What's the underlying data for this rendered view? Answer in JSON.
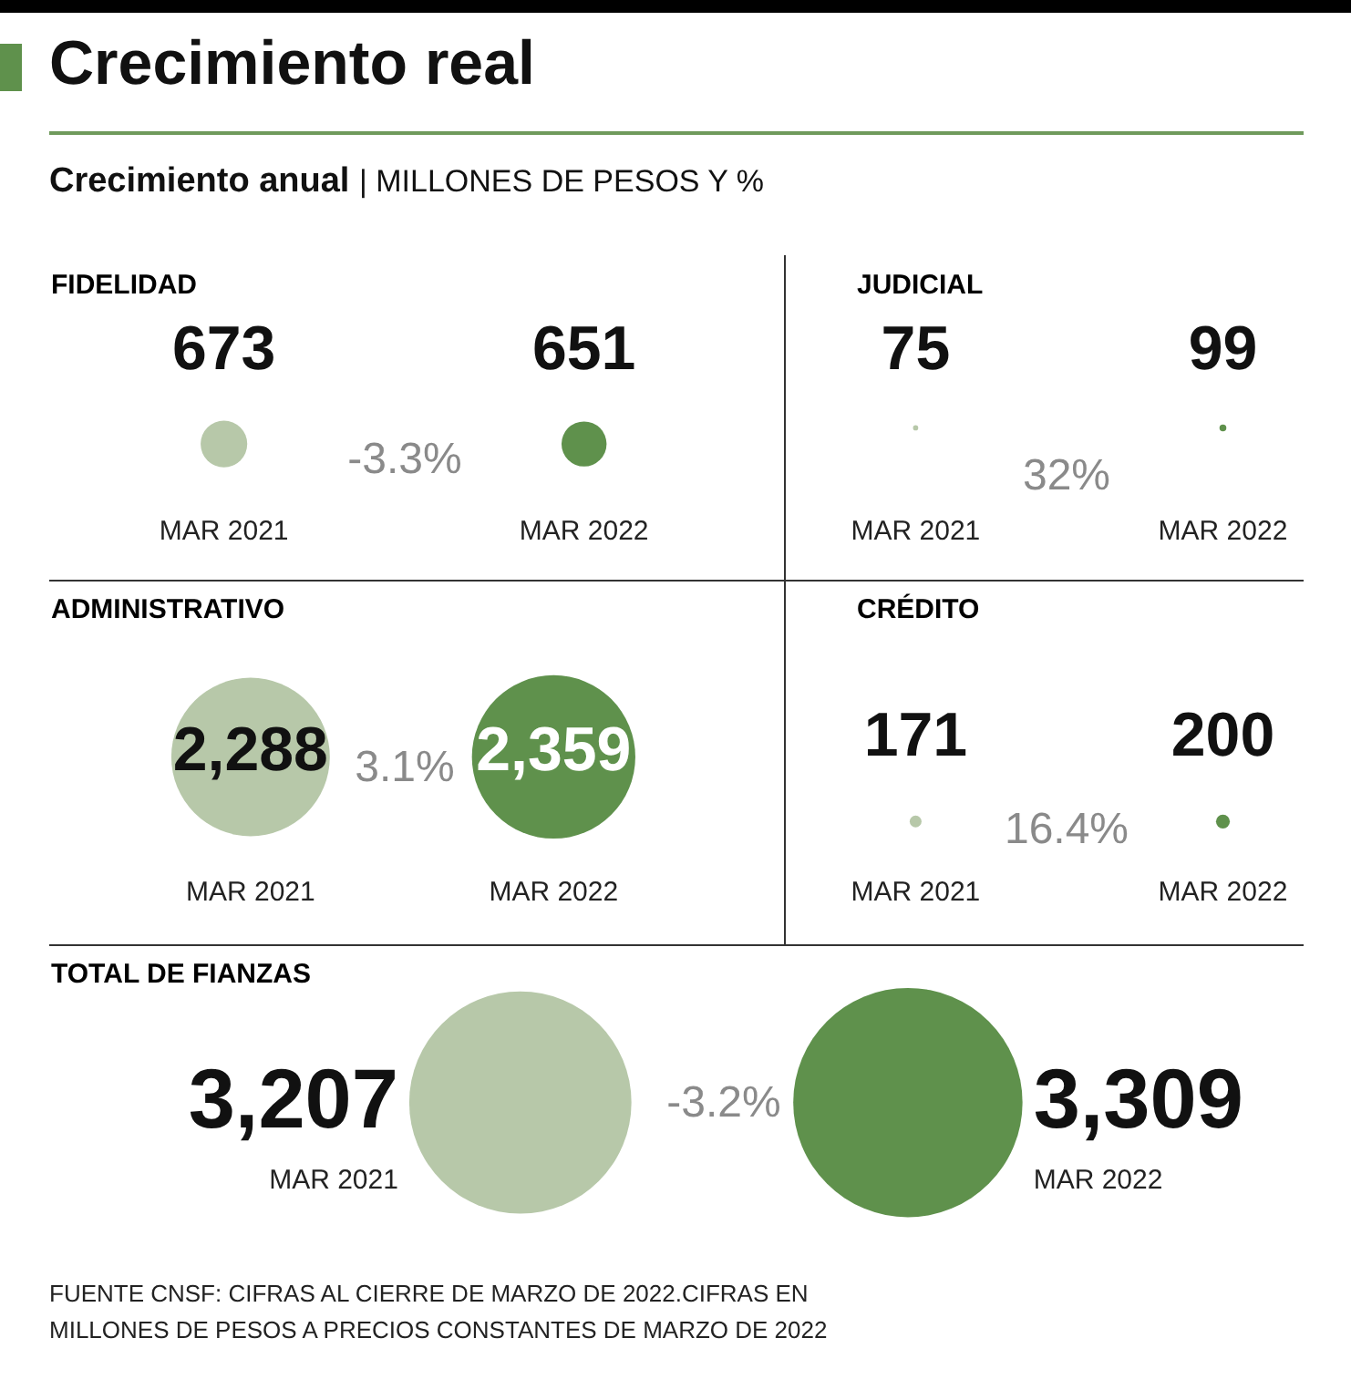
{
  "chart_data": [
    {
      "type": "other",
      "title": "Crecimiento real",
      "subtitle": "Crecimiento anual | MILLONES DE PESOS Y %"
    },
    {
      "type": "other",
      "title": "FIDELIDAD",
      "categories": [
        "MAR 2021",
        "MAR 2022"
      ],
      "values": [
        673,
        651
      ],
      "value_labels": [
        "673",
        "651"
      ],
      "colors": [
        "#b7c8a9",
        "#5f914c"
      ],
      "annotations": [
        "-3.3%"
      ]
    },
    {
      "type": "other",
      "title": "JUDICIAL",
      "categories": [
        "MAR 2021",
        "MAR 2022"
      ],
      "values": [
        75,
        99
      ],
      "value_labels": [
        "75",
        "99"
      ],
      "colors": [
        "#b7c8a9",
        "#5f914c"
      ],
      "annotations": [
        "32%"
      ]
    },
    {
      "type": "other",
      "title": "ADMINISTRATIVO",
      "categories": [
        "MAR 2021",
        "MAR 2022"
      ],
      "values": [
        2288,
        2359
      ],
      "value_labels": [
        "2,288",
        "2,359"
      ],
      "colors": [
        "#b7c8a9",
        "#5f914c"
      ],
      "annotations": [
        "3.1%"
      ]
    },
    {
      "type": "other",
      "title": "CRÉDITO",
      "categories": [
        "MAR 2021",
        "MAR 2022"
      ],
      "values": [
        171,
        200
      ],
      "value_labels": [
        "171",
        "200"
      ],
      "colors": [
        "#b7c8a9",
        "#5f914c"
      ],
      "annotations": [
        "16.4%"
      ]
    },
    {
      "type": "other",
      "title": "TOTAL DE FIANZAS",
      "categories": [
        "MAR 2021",
        "MAR 2022"
      ],
      "values": [
        3207,
        3309
      ],
      "value_labels": [
        "3,207",
        "3,309"
      ],
      "colors": [
        "#b7c8a9",
        "#5f914c"
      ],
      "annotations": [
        "-3.2%"
      ]
    },
    {
      "type": "other",
      "annotations": [
        "FUENTE CNSF: CIFRAS AL CIERRE DE MARZO DE 2022.CIFRAS EN MILLONES DE PESOS A PRECIOS CONSTANTES DE MARZO DE 2022"
      ]
    }
  ]
}
